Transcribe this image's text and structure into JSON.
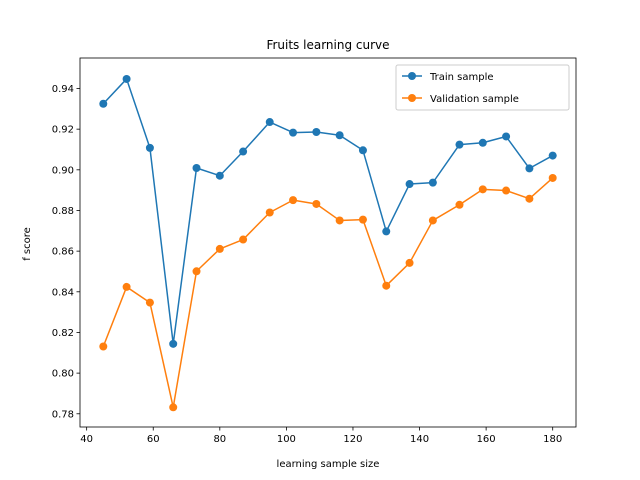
{
  "chart_data": {
    "type": "line",
    "title": "Fruits  learning curve",
    "xlabel": "learning sample size",
    "ylabel": "f score",
    "xlim": [
      38,
      187
    ],
    "ylim": [
      0.7735,
      0.955
    ],
    "xticks": [
      "40",
      "60",
      "80",
      "100",
      "120",
      "140",
      "160",
      "180"
    ],
    "xtick_values": [
      40,
      60,
      80,
      100,
      120,
      140,
      160,
      180
    ],
    "yticks": [
      "0.78",
      "0.80",
      "0.82",
      "0.84",
      "0.86",
      "0.88",
      "0.90",
      "0.92",
      "0.94"
    ],
    "ytick_values": [
      0.78,
      0.8,
      0.82,
      0.84,
      0.86,
      0.88,
      0.9,
      0.92,
      0.94
    ],
    "grid": false,
    "legend_position": "top-right",
    "x": [
      45,
      52,
      59,
      66,
      73,
      80,
      87,
      95,
      102,
      109,
      116,
      123,
      130,
      137,
      144,
      152,
      159,
      166,
      173,
      180
    ],
    "series": [
      {
        "name": "Train sample",
        "color": "#1f77b4",
        "values": [
          0.9325,
          0.9447,
          0.9108,
          0.8144,
          0.9009,
          0.8971,
          0.909,
          0.9235,
          0.9183,
          0.9186,
          0.917,
          0.9096,
          0.8697,
          0.893,
          0.8937,
          0.9124,
          0.9133,
          0.9164,
          0.9007,
          0.907
        ]
      },
      {
        "name": "Validation sample",
        "color": "#ff7f0e",
        "values": [
          0.8131,
          0.8424,
          0.8347,
          0.7832,
          0.8501,
          0.8611,
          0.8657,
          0.879,
          0.8851,
          0.8832,
          0.8751,
          0.8755,
          0.843,
          0.8542,
          0.8751,
          0.8828,
          0.8904,
          0.8898,
          0.8858,
          0.896
        ]
      }
    ]
  }
}
